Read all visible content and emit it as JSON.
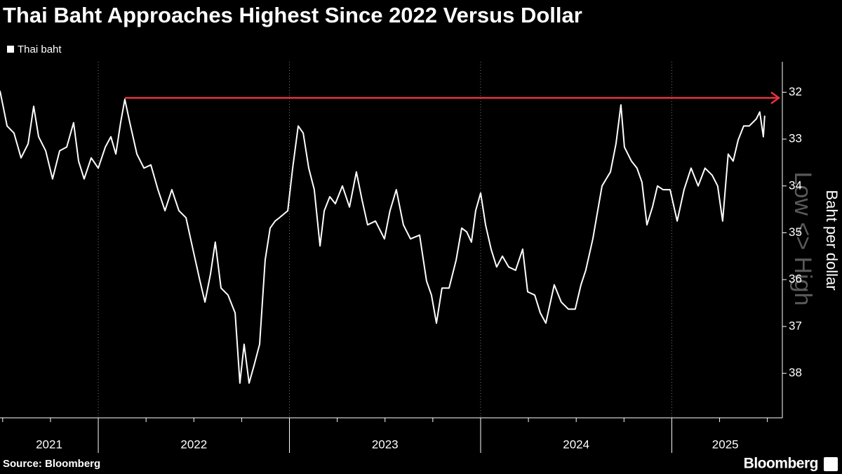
{
  "chart_data": {
    "type": "line",
    "title": "Thai Baht Approaches Highest Since 2022 Versus Dollar",
    "y_label": "Baht per dollar",
    "annotation": "Low <> High",
    "source": "Source: Bloomberg",
    "logo": "Bloomberg",
    "y_inverted": true,
    "ylim": [
      31.35,
      38.95
    ],
    "yticks": [
      32,
      33,
      34,
      35,
      36,
      37,
      38
    ],
    "xlim": [
      2021.486,
      2025.56
    ],
    "xticks": [
      2022,
      2023,
      2024,
      2025
    ],
    "xtick_labels": [
      "2021",
      "2022",
      "2023",
      "2024",
      "2025"
    ],
    "grid": true,
    "reference_line": {
      "value": 32.12,
      "x_start": 2022.139,
      "color": "#e8313a"
    },
    "series": [
      {
        "name": "Thai baht",
        "color": "#ffffff",
        "x": [
          2021.486,
          2021.523,
          2021.559,
          2021.596,
          2021.633,
          2021.662,
          2021.688,
          2021.725,
          2021.761,
          2021.798,
          2021.835,
          2021.871,
          2021.897,
          2021.926,
          2021.963,
          2022.0,
          2022.037,
          2022.066,
          2022.092,
          2022.117,
          2022.139,
          2022.165,
          2022.202,
          2022.239,
          2022.275,
          2022.312,
          2022.349,
          2022.385,
          2022.422,
          2022.459,
          2022.495,
          2022.532,
          2022.558,
          2022.587,
          2022.612,
          2022.642,
          2022.679,
          2022.716,
          2022.741,
          2022.763,
          2022.789,
          2022.815,
          2022.844,
          2022.873,
          2022.899,
          2022.925,
          2022.947,
          2022.991,
          2023.017,
          2023.046,
          2023.072,
          2023.101,
          2023.13,
          2023.16,
          2023.182,
          2023.211,
          2023.24,
          2023.277,
          2023.314,
          2023.35,
          2023.38,
          2023.409,
          2023.45,
          2023.497,
          2023.526,
          2023.559,
          2023.596,
          2023.633,
          2023.681,
          2023.717,
          2023.743,
          2023.769,
          2023.798,
          2023.835,
          2023.872,
          2023.901,
          2023.927,
          2023.952,
          2023.974,
          2024.0,
          2024.026,
          2024.055,
          2024.084,
          2024.114,
          2024.147,
          2024.183,
          2024.22,
          2024.246,
          2024.283,
          2024.312,
          2024.341,
          2024.385,
          2024.422,
          2024.459,
          2024.495,
          2024.525,
          2024.55,
          2024.587,
          2024.606,
          2024.635,
          2024.679,
          2024.708,
          2024.734,
          2024.752,
          2024.789,
          2024.818,
          2024.844,
          2024.87,
          2024.899,
          2024.925,
          2024.954,
          2024.991,
          2025.028,
          2025.064,
          2025.101,
          2025.138,
          2025.174,
          2025.211,
          2025.24,
          2025.266,
          2025.295,
          2025.321,
          2025.347,
          2025.376,
          2025.405,
          2025.442,
          2025.46,
          2025.479,
          2025.486
        ],
        "values": [
          31.97,
          32.72,
          32.87,
          33.4,
          33.1,
          32.3,
          32.95,
          33.25,
          33.85,
          33.25,
          33.17,
          32.65,
          33.47,
          33.85,
          33.4,
          33.62,
          33.17,
          32.95,
          33.32,
          32.65,
          32.15,
          32.65,
          33.32,
          33.62,
          33.55,
          34.08,
          34.53,
          34.08,
          34.53,
          34.68,
          35.35,
          36.03,
          36.48,
          35.88,
          35.2,
          36.18,
          36.33,
          36.71,
          38.21,
          37.38,
          38.21,
          37.83,
          37.38,
          35.58,
          34.9,
          34.75,
          34.68,
          34.53,
          33.62,
          32.72,
          32.87,
          33.62,
          34.08,
          35.28,
          34.53,
          34.23,
          34.38,
          34.0,
          34.45,
          33.7,
          34.3,
          34.83,
          34.75,
          35.13,
          34.53,
          34.08,
          34.83,
          35.13,
          35.05,
          36.03,
          36.33,
          36.93,
          36.18,
          36.18,
          35.58,
          34.9,
          34.98,
          35.2,
          34.53,
          34.15,
          34.83,
          35.35,
          35.73,
          35.5,
          35.73,
          35.8,
          35.35,
          36.26,
          36.33,
          36.71,
          36.93,
          36.11,
          36.48,
          36.63,
          36.63,
          36.11,
          35.8,
          35.13,
          34.68,
          34.0,
          33.7,
          33.1,
          32.27,
          33.17,
          33.47,
          33.62,
          33.92,
          34.83,
          34.45,
          34.0,
          34.08,
          34.08,
          34.75,
          34.08,
          33.62,
          34.0,
          33.62,
          33.77,
          34.0,
          34.75,
          33.32,
          33.47,
          33.02,
          32.72,
          32.72,
          32.57,
          32.42,
          32.95,
          32.5
        ]
      }
    ]
  }
}
